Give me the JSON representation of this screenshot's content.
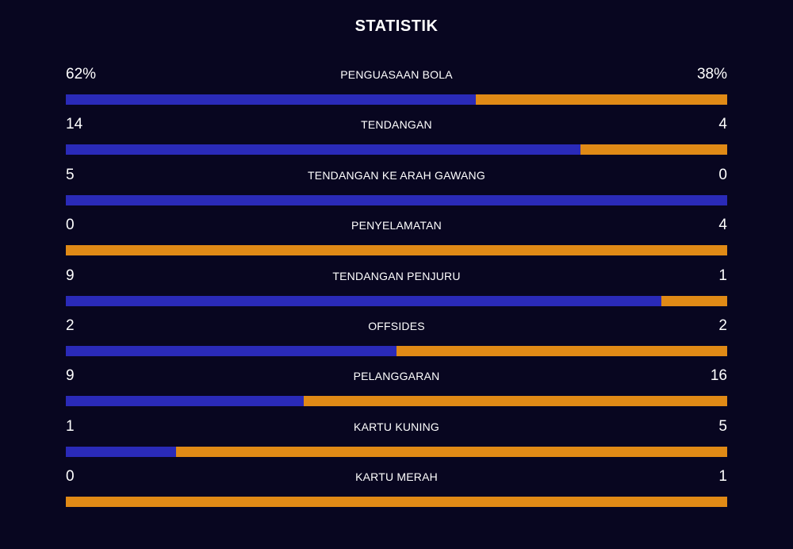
{
  "title": "STATISTIK",
  "colors": {
    "background": "#080620",
    "home": "#2a2ab8",
    "away": "#e08a16"
  },
  "stats": [
    {
      "label": "PENGUASAAN BOLA",
      "home": "62%",
      "away": "38%",
      "home_share": 0.62
    },
    {
      "label": "TENDANGAN",
      "home": "14",
      "away": "4",
      "home_share": 0.7778
    },
    {
      "label": "TENDANGAN KE ARAH GAWANG",
      "home": "5",
      "away": "0",
      "home_share": 1.0
    },
    {
      "label": "PENYELAMATAN",
      "home": "0",
      "away": "4",
      "home_share": 0.0
    },
    {
      "label": "TENDANGAN PENJURU",
      "home": "9",
      "away": "1",
      "home_share": 0.9
    },
    {
      "label": "OFFSIDES",
      "home": "2",
      "away": "2",
      "home_share": 0.5
    },
    {
      "label": "PELANGGARAN",
      "home": "9",
      "away": "16",
      "home_share": 0.36
    },
    {
      "label": "KARTU KUNING",
      "home": "1",
      "away": "5",
      "home_share": 0.1667
    },
    {
      "label": "KARTU MERAH",
      "home": "0",
      "away": "1",
      "home_share": 0.0
    }
  ]
}
